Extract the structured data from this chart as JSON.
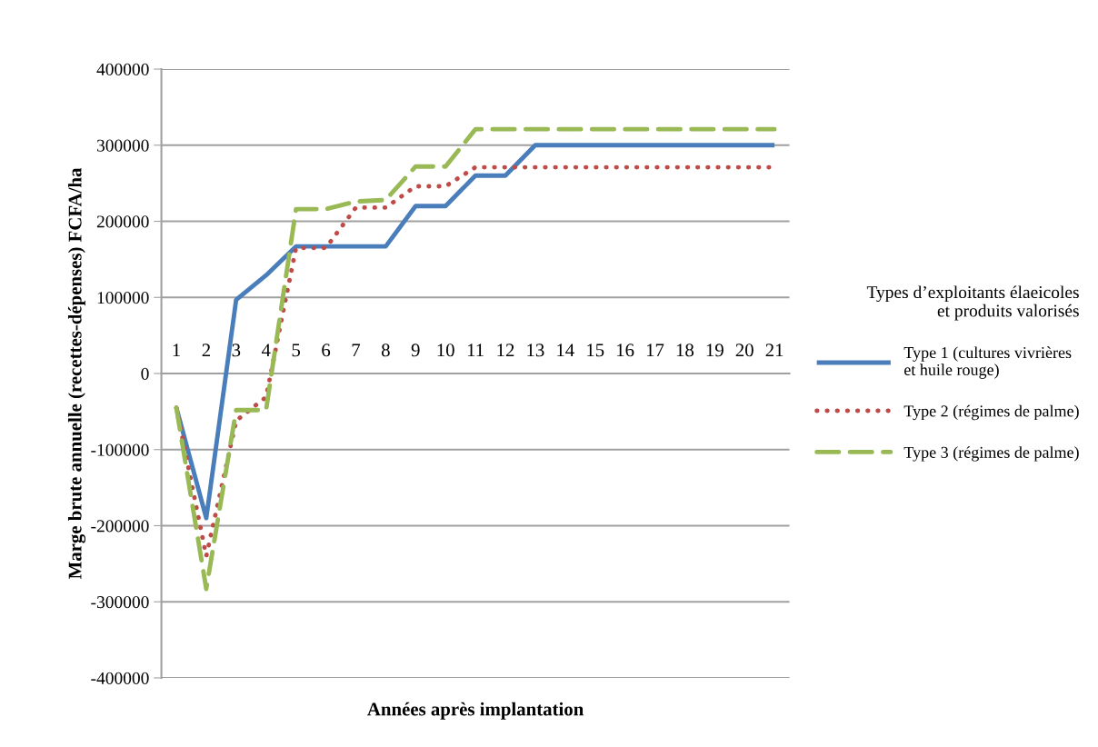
{
  "chart_data": {
    "type": "line",
    "xlabel": "Années après implantation",
    "ylabel": "Marge brute annuelle (recettes-dépenses) FCFA/ha",
    "legend_title": "Types d’exploitants élaeicoles\net produits valorisés",
    "categories": [
      "1",
      "2",
      "3",
      "4",
      "5",
      "6",
      "7",
      "8",
      "9",
      "10",
      "11",
      "12",
      "13",
      "14",
      "15",
      "16",
      "17",
      "18",
      "19",
      "20",
      "21"
    ],
    "series": [
      {
        "name": "Type 1 (cultures vivrières\net huile rouge)",
        "color": "#4a7ebb",
        "line_style": "solid",
        "values": [
          -45000,
          -190000,
          97000,
          129000,
          167000,
          167000,
          167000,
          167000,
          220000,
          220000,
          260000,
          260000,
          300000,
          300000,
          300000,
          300000,
          300000,
          300000,
          300000,
          300000,
          300000
        ]
      },
      {
        "name": "Type 2 (régimes de palme)",
        "color": "#be4b48",
        "line_style": "dotted",
        "values": [
          -45000,
          -240000,
          -62000,
          -31000,
          165000,
          165000,
          218000,
          218000,
          246000,
          246000,
          271000,
          271000,
          271000,
          271000,
          271000,
          271000,
          271000,
          271000,
          271000,
          271000,
          271000
        ]
      },
      {
        "name": "Type 3 (régimes de palme)",
        "color": "#98b954",
        "line_style": "dashed",
        "values": [
          -45000,
          -283000,
          -48000,
          -48000,
          216000,
          216000,
          226000,
          228000,
          272000,
          272000,
          321000,
          321000,
          321000,
          321000,
          321000,
          321000,
          321000,
          321000,
          321000,
          321000,
          321000
        ]
      }
    ],
    "ylim": [
      -400000,
      400000
    ],
    "yticks": [
      -400000,
      -300000,
      -200000,
      -100000,
      0,
      100000,
      200000,
      300000,
      400000
    ],
    "grid": "y",
    "legend": "right"
  }
}
